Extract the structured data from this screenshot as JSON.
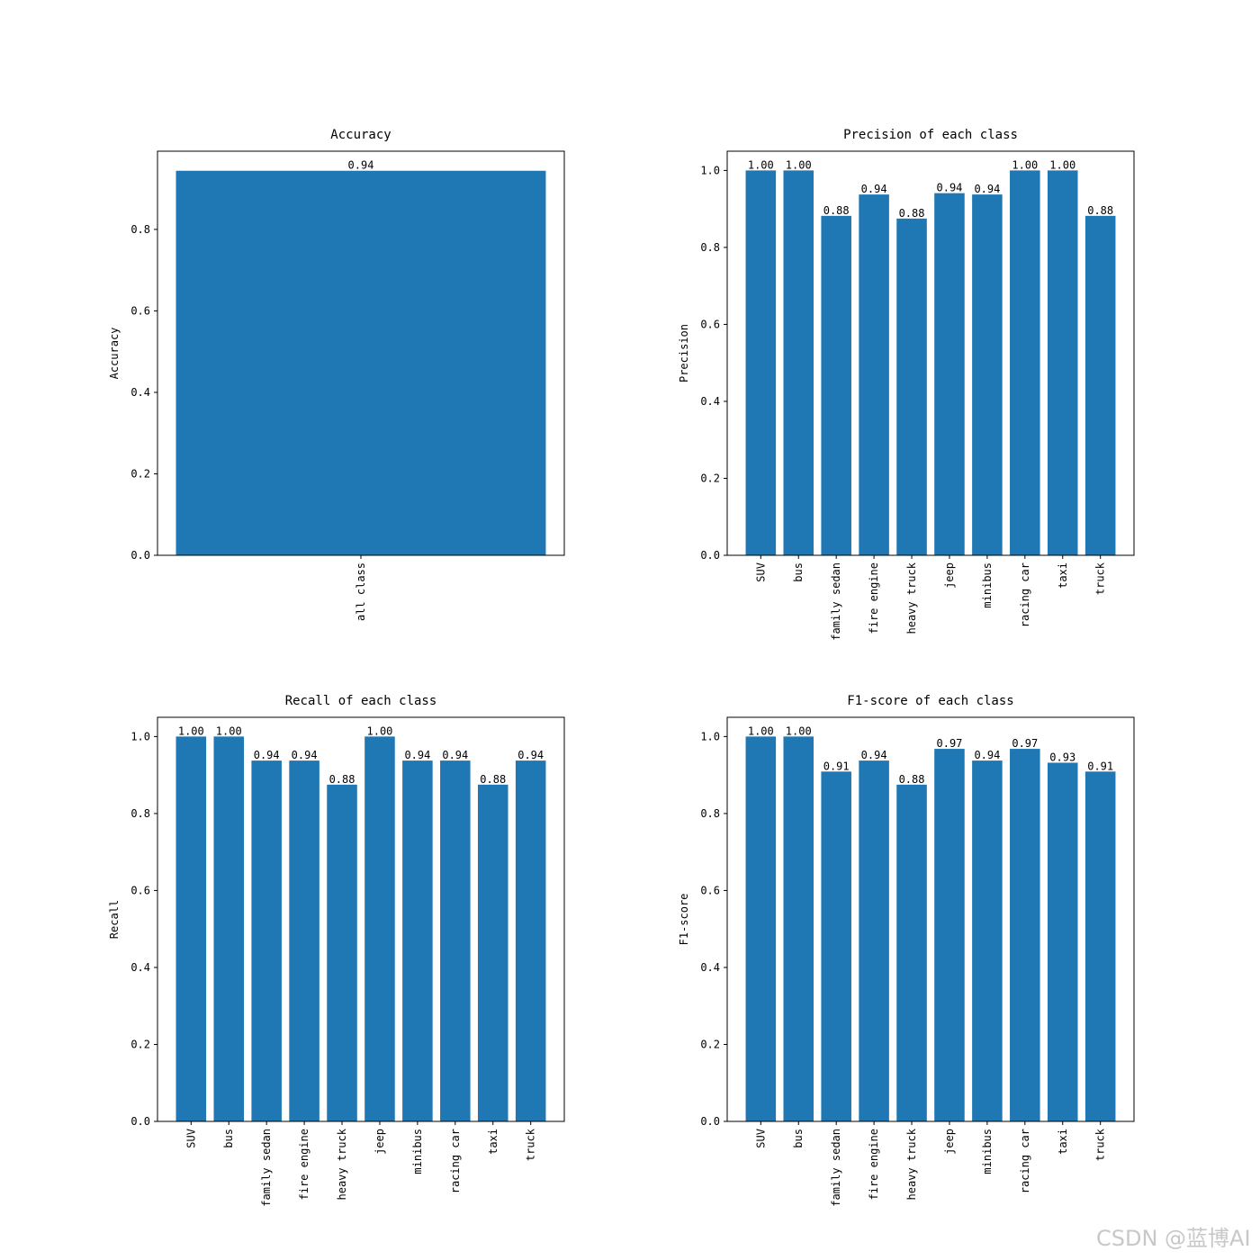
{
  "chart_data": [
    {
      "type": "bar",
      "title": "Accuracy",
      "y_label": "Accuracy",
      "categories": [
        "all class"
      ],
      "values": [
        0.944
      ],
      "value_labels": [
        "0.94"
      ],
      "color": "#1f77b4",
      "ylim": [
        0,
        0.992
      ],
      "yticks": [
        {
          "value": 0,
          "label": "0.0"
        },
        0.2,
        0.4,
        0.6,
        0.8
      ]
    },
    {
      "type": "bar",
      "title": "Precision of each class",
      "y_label": "Precision",
      "categories": [
        "SUV",
        "bus",
        "family sedan",
        "fire engine",
        "heavy truck",
        "jeep",
        "minibus",
        "racing car",
        "taxi",
        "truck"
      ],
      "values": [
        1,
        1,
        0.882,
        0.9375,
        0.875,
        0.941,
        0.9375,
        1,
        1,
        0.882
      ],
      "value_labels": [
        "1.00",
        "1.00",
        "0.88",
        "0.94",
        "0.88",
        "0.94",
        "0.94",
        "1.00",
        "1.00",
        "0.88"
      ],
      "color": "#1f77b4",
      "ylim": [
        0,
        1.05
      ],
      "yticks": [
        {
          "value": 0,
          "label": "0.0"
        },
        0.2,
        0.4,
        0.6,
        0.8,
        {
          "value": 1,
          "label": "1.0"
        }
      ]
    },
    {
      "type": "bar",
      "title": "Recall of each class",
      "y_label": "Recall",
      "categories": [
        "SUV",
        "bus",
        "family sedan",
        "fire engine",
        "heavy truck",
        "jeep",
        "minibus",
        "racing car",
        "taxi",
        "truck"
      ],
      "values": [
        1,
        1,
        0.9375,
        0.9375,
        0.875,
        1,
        0.9375,
        0.9375,
        0.875,
        0.9375
      ],
      "value_labels": [
        "1.00",
        "1.00",
        "0.94",
        "0.94",
        "0.88",
        "1.00",
        "0.94",
        "0.94",
        "0.88",
        "0.94"
      ],
      "color": "#1f77b4",
      "ylim": [
        0,
        1.05
      ],
      "yticks": [
        {
          "value": 0,
          "label": "0.0"
        },
        0.2,
        0.4,
        0.6,
        0.8,
        {
          "value": 1,
          "label": "1.0"
        }
      ]
    },
    {
      "type": "bar",
      "title": "F1-score of each class",
      "y_label": "F1-score",
      "categories": [
        "SUV",
        "bus",
        "family sedan",
        "fire engine",
        "heavy truck",
        "jeep",
        "minibus",
        "racing car",
        "taxi",
        "truck"
      ],
      "values": [
        1,
        1,
        0.909,
        0.9375,
        0.875,
        0.968,
        0.9375,
        0.968,
        0.932,
        0.909
      ],
      "value_labels": [
        "1.00",
        "1.00",
        "0.91",
        "0.94",
        "0.88",
        "0.97",
        "0.94",
        "0.97",
        "0.93",
        "0.91"
      ],
      "color": "#1f77b4",
      "ylim": [
        0,
        1.05
      ],
      "yticks": [
        {
          "value": 0,
          "label": "0.0"
        },
        0.2,
        0.4,
        0.6,
        0.8,
        {
          "value": 1,
          "label": "1.0"
        }
      ]
    }
  ],
  "watermark": "CSDN @蓝博AI"
}
